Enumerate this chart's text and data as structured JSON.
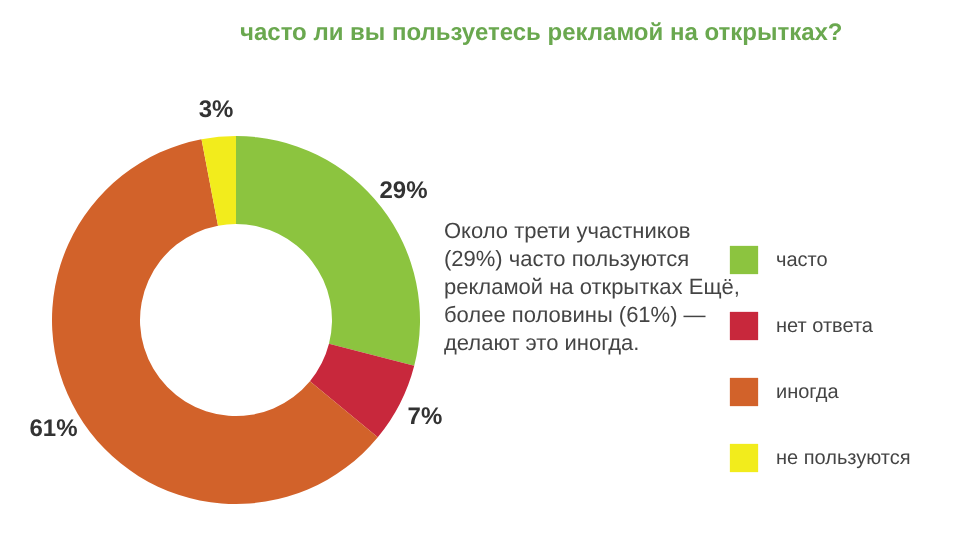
{
  "chart_data": {
    "type": "donut",
    "title": "часто ли вы пользуетесь рекламой на открытках?",
    "categories": [
      "часто",
      "нет ответа",
      "иногда",
      "не пользуются"
    ],
    "values": [
      29,
      7,
      61,
      3
    ],
    "colors": [
      "#8cc43f",
      "#c8283c",
      "#d2622a",
      "#f2ec1c"
    ],
    "value_labels": [
      "29%",
      "7%",
      "61%",
      "3%"
    ],
    "legend": "right",
    "annotations": [
      "Около трети участников (29%) часто пользуются рекламой на открытках Ещё, более половины (61%) — делают это иногда."
    ]
  }
}
